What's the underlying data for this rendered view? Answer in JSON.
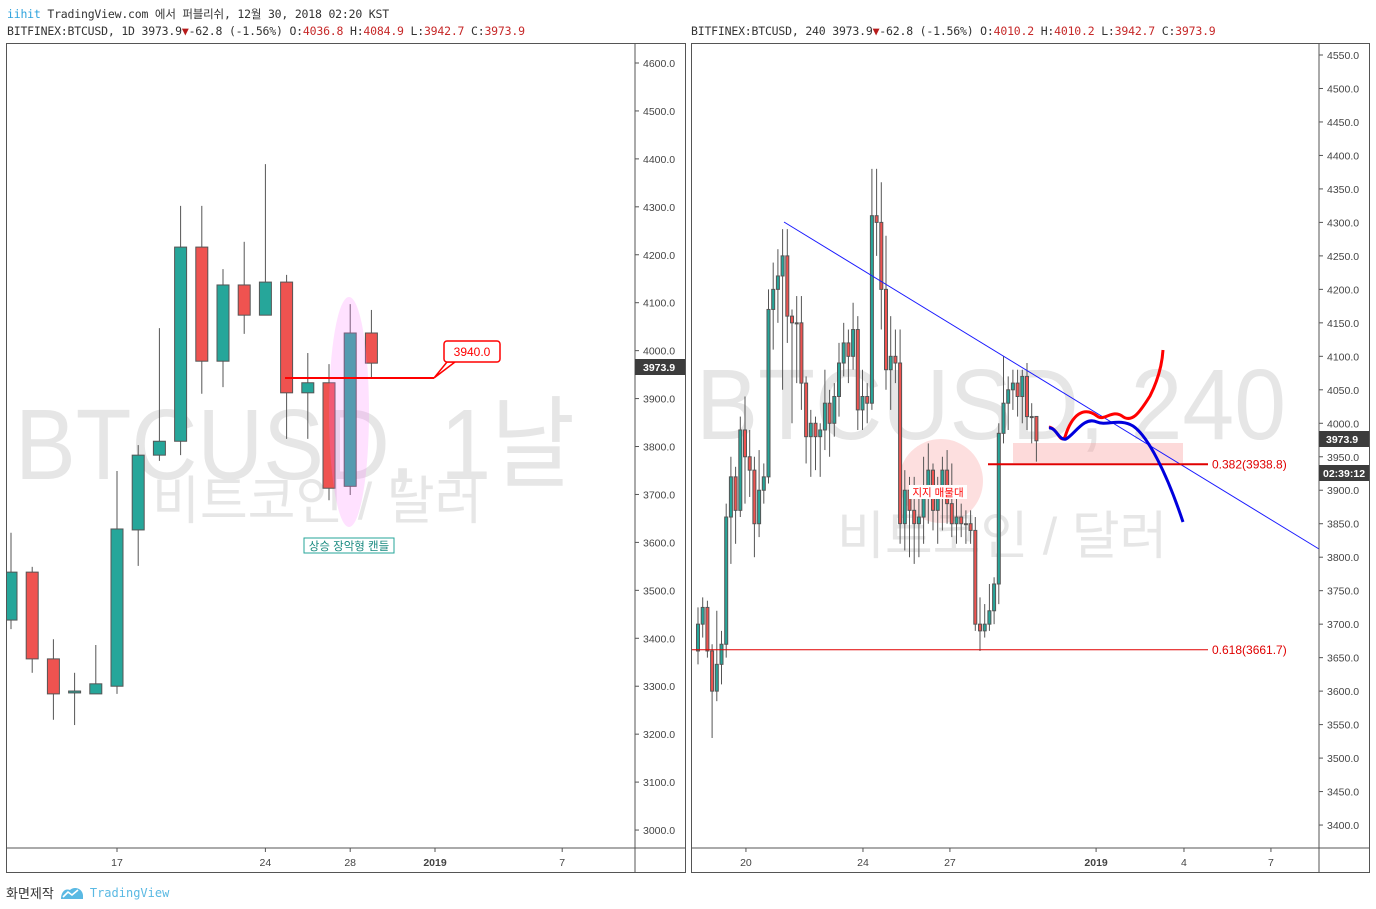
{
  "header": {
    "author": "iihit",
    "publish_text": "TradingView.com 에서 퍼블리쉬, 12월 30, 2018 02:20 KST"
  },
  "footer": {
    "made_by": "화면제작",
    "brand": "TradingView"
  },
  "colors": {
    "up": "#26a69a",
    "down": "#ef5350",
    "trendline": "#1a1aff",
    "fib": "#e00000",
    "forecast_up": "#ff0000",
    "forecast_down": "#0000dd"
  },
  "chart_data": [
    {
      "type": "candlestick",
      "symbol": "BITFINEX:BTCUSD",
      "interval": "1D",
      "last": "3973.9",
      "change": "-62.8",
      "change_pct": "(-1.56%)",
      "ohlc": {
        "o": "4036.8",
        "h": "4084.9",
        "l": "3942.7",
        "c": "3973.9"
      },
      "watermark": "BTCUSD, 1날",
      "watermark_sub": "비트코인 / 달러",
      "ylim": [
        2960,
        4640
      ],
      "y_ticks": [
        "4600.0",
        "4500.0",
        "4400.0",
        "4300.0",
        "4200.0",
        "4100.0",
        "4000.0",
        "3900.0",
        "3800.0",
        "3700.0",
        "3600.0",
        "3500.0",
        "3400.0",
        "3300.0",
        "3200.0",
        "3100.0",
        "3000.0"
      ],
      "x_ticks": [
        "17",
        "24",
        "28",
        "2019",
        "7"
      ],
      "price_label": "3973.9",
      "open": [
        3438,
        3538,
        3357,
        3286,
        3284,
        3300,
        3626,
        3782,
        3811,
        4216,
        3978,
        4137,
        4074,
        4143,
        3912,
        3933,
        3717,
        4036.8
      ],
      "high": [
        3620,
        3549,
        3398,
        3328,
        3386,
        3749,
        3803,
        4047,
        4302,
        4302,
        4170,
        4227,
        4389,
        4158,
        3995,
        3972,
        4097,
        4084.9
      ],
      "low": [
        3419,
        3328,
        3230,
        3219,
        3284,
        3284,
        3551,
        3770,
        3782,
        3910,
        3924,
        4035,
        4074,
        3816,
        3816,
        3688,
        3699,
        3942.7
      ],
      "close": [
        3538,
        3357,
        3284,
        3290,
        3305,
        3628,
        3782,
        3811,
        4216,
        3978,
        4137,
        4074,
        4143,
        3912,
        3933,
        3713,
        4036.8,
        3973.9
      ],
      "annotations": {
        "level_callout": "3940.0",
        "pattern_label": "상승 장악형 캔들"
      }
    },
    {
      "type": "candlestick",
      "symbol": "BITFINEX:BTCUSD",
      "interval": "240",
      "last": "3973.9",
      "change": "-62.8",
      "change_pct": "(-1.56%)",
      "ohlc": {
        "o": "4010.2",
        "h": "4010.2",
        "l": "3942.7",
        "c": "3973.9"
      },
      "watermark": "BTCUSD, 240",
      "watermark_sub": "비트코인 / 달러",
      "ylim": [
        3367,
        4566
      ],
      "y_ticks": [
        "4550.0",
        "4500.0",
        "4450.0",
        "4400.0",
        "4350.0",
        "4300.0",
        "4250.0",
        "4200.0",
        "4150.0",
        "4100.0",
        "4050.0",
        "4000.0",
        "3950.0",
        "3900.0",
        "3850.0",
        "3800.0",
        "3750.0",
        "3700.0",
        "3650.0",
        "3600.0",
        "3550.0",
        "3500.0",
        "3450.0",
        "3400.0"
      ],
      "x_ticks": [
        "20",
        "24",
        "27",
        "2019",
        "4",
        "7"
      ],
      "price_label": "3973.9",
      "countdown": "02:39:12",
      "open": [
        3660,
        3700,
        3725,
        3660,
        3600,
        3640,
        3670,
        3860,
        3920,
        3870,
        3990,
        3950,
        3930,
        3850,
        3900,
        3920,
        4170,
        4200,
        4220,
        4250,
        4160,
        4150,
        4150,
        4060,
        3980,
        4000,
        3980,
        3990,
        4030,
        4000,
        4040,
        4090,
        4120,
        4100,
        4140,
        4020,
        4040,
        4030,
        4310,
        4300,
        4200,
        4080,
        4100,
        4090,
        3850,
        3900,
        3870,
        3850,
        3860,
        3900,
        3930,
        3870,
        3900,
        3930,
        3880,
        3850,
        3860,
        3850,
        3850,
        3840,
        3700,
        3690,
        3700,
        3720,
        3760,
        3985,
        4030,
        4050,
        4060,
        4040,
        4070,
        4010,
        4010.2
      ],
      "high": [
        3725,
        3740,
        3735,
        3670,
        3720,
        3690,
        3880,
        3950,
        3935,
        4010,
        4040,
        3990,
        3950,
        3960,
        3940,
        4200,
        4240,
        4260,
        4290,
        4290,
        4170,
        4190,
        4190,
        4070,
        4020,
        4010,
        4000,
        4080,
        4050,
        4060,
        4120,
        4150,
        4140,
        4180,
        4160,
        4080,
        4060,
        4380,
        4380,
        4360,
        4280,
        4160,
        4140,
        4140,
        3930,
        3920,
        3920,
        3900,
        3950,
        3970,
        3940,
        3920,
        3950,
        3960,
        3940,
        3900,
        3880,
        3870,
        3870,
        3860,
        3740,
        3730,
        3760,
        3770,
        4000,
        4100,
        4070,
        4080,
        4080,
        4080,
        4090,
        4030,
        4010.2
      ],
      "low": [
        3640,
        3680,
        3650,
        3530,
        3585,
        3610,
        3650,
        3790,
        3820,
        3860,
        3880,
        3890,
        3800,
        3830,
        3880,
        3910,
        4110,
        4150,
        4050,
        4120,
        4000,
        4060,
        4020,
        3940,
        3920,
        3930,
        3920,
        3960,
        3950,
        3980,
        4010,
        4070,
        4060,
        4080,
        3990,
        3990,
        4000,
        4020,
        4250,
        4140,
        4050,
        4020,
        4060,
        3820,
        3810,
        3800,
        3790,
        3800,
        3820,
        3850,
        3840,
        3820,
        3840,
        3850,
        3830,
        3820,
        3830,
        3820,
        3820,
        3690,
        3660,
        3680,
        3690,
        3700,
        3730,
        3970,
        3990,
        4020,
        4010,
        4000,
        3990,
        3970,
        3942.7
      ],
      "close": [
        3700,
        3725,
        3660,
        3600,
        3640,
        3670,
        3860,
        3920,
        3870,
        3990,
        3950,
        3930,
        3850,
        3900,
        3920,
        4170,
        4200,
        4220,
        4250,
        4160,
        4150,
        4150,
        4060,
        3980,
        4000,
        3980,
        3990,
        4030,
        4000,
        4040,
        4090,
        4120,
        4100,
        4140,
        4020,
        4040,
        4030,
        4310,
        4300,
        4200,
        4080,
        4100,
        4090,
        3850,
        3900,
        3870,
        3850,
        3860,
        3900,
        3930,
        3870,
        3900,
        3930,
        3880,
        3850,
        3860,
        3850,
        3850,
        3840,
        3700,
        3690,
        3700,
        3720,
        3760,
        3985,
        4030,
        4050,
        4060,
        4040,
        4070,
        4010,
        4010,
        3973.9
      ],
      "annotations": {
        "fib_382": "0.382(3938.8)",
        "fib_618": "0.618(3661.7)",
        "fib_382_value": 3938.8,
        "fib_618_value": 3661.7,
        "support_label": "지지 매물대"
      }
    }
  ]
}
